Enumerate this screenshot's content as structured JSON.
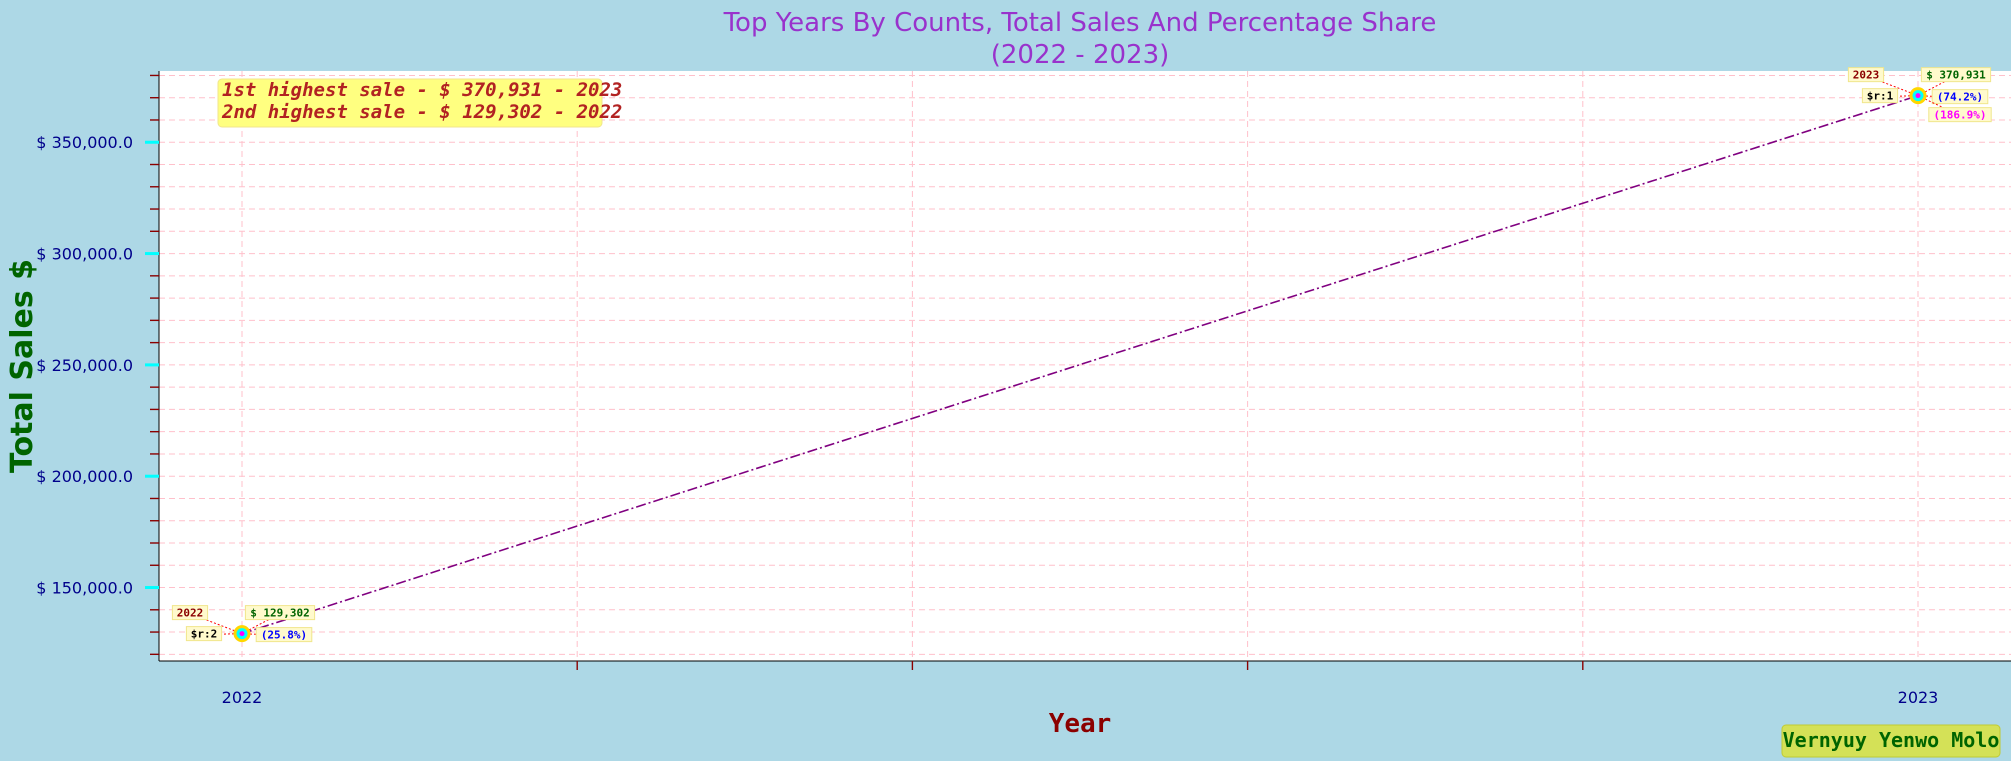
{
  "title_line1": "Top Years By Counts, Total Sales And Percentage Share",
  "title_line2": "(2022 - 2023)",
  "ylabel": "Total Sales $",
  "xlabel": "Year",
  "highlights": [
    "1st highest sale - $ 370,931 - 2023",
    "2nd highest sale - $ 129,302 - 2022"
  ],
  "watermark": "Vernyuy Yenwo Molo",
  "colors": {
    "background": "#add8e6",
    "plot_bg": "#ffffff",
    "grid": "#ffc0cb",
    "line": "#800080",
    "title": "#9932cc",
    "ylabel": "#006400",
    "xlabel": "#8b0000",
    "tick_label": "#00008b",
    "major_tick": "#00ffff",
    "minor_tick": "#8b0000",
    "highlight_bg": "#ffff80",
    "watermark_bg": "#d4e157"
  },
  "chart_data": {
    "type": "line",
    "title": "Top Years By Counts, Total Sales And Percentage Share (2022 - 2023)",
    "xlabel": "Year",
    "ylabel": "Total Sales $",
    "x": [
      2022,
      2023
    ],
    "series": [
      {
        "values": [
          129302,
          370931
        ]
      }
    ],
    "ylim": [
      117000,
      382000
    ],
    "yticks": [
      150000,
      200000,
      250000,
      300000,
      350000
    ],
    "ytick_labels": [
      "$ 150,000.0",
      "$ 200,000.0",
      "$ 250,000.0",
      "$ 300,000.0",
      "$ 350,000.0"
    ],
    "xtick_labels": [
      "2022",
      "2023"
    ],
    "grid": true,
    "annotations": [
      {
        "x": 2022,
        "year": "2022",
        "sales": "$ 129,302",
        "rank": "$r:2",
        "share": "(25.8%)",
        "growth": ""
      },
      {
        "x": 2023,
        "year": "2023",
        "sales": "$ 370,931",
        "rank": "$r:1",
        "share": "(74.2%)",
        "growth": "(186.9%)"
      }
    ]
  }
}
